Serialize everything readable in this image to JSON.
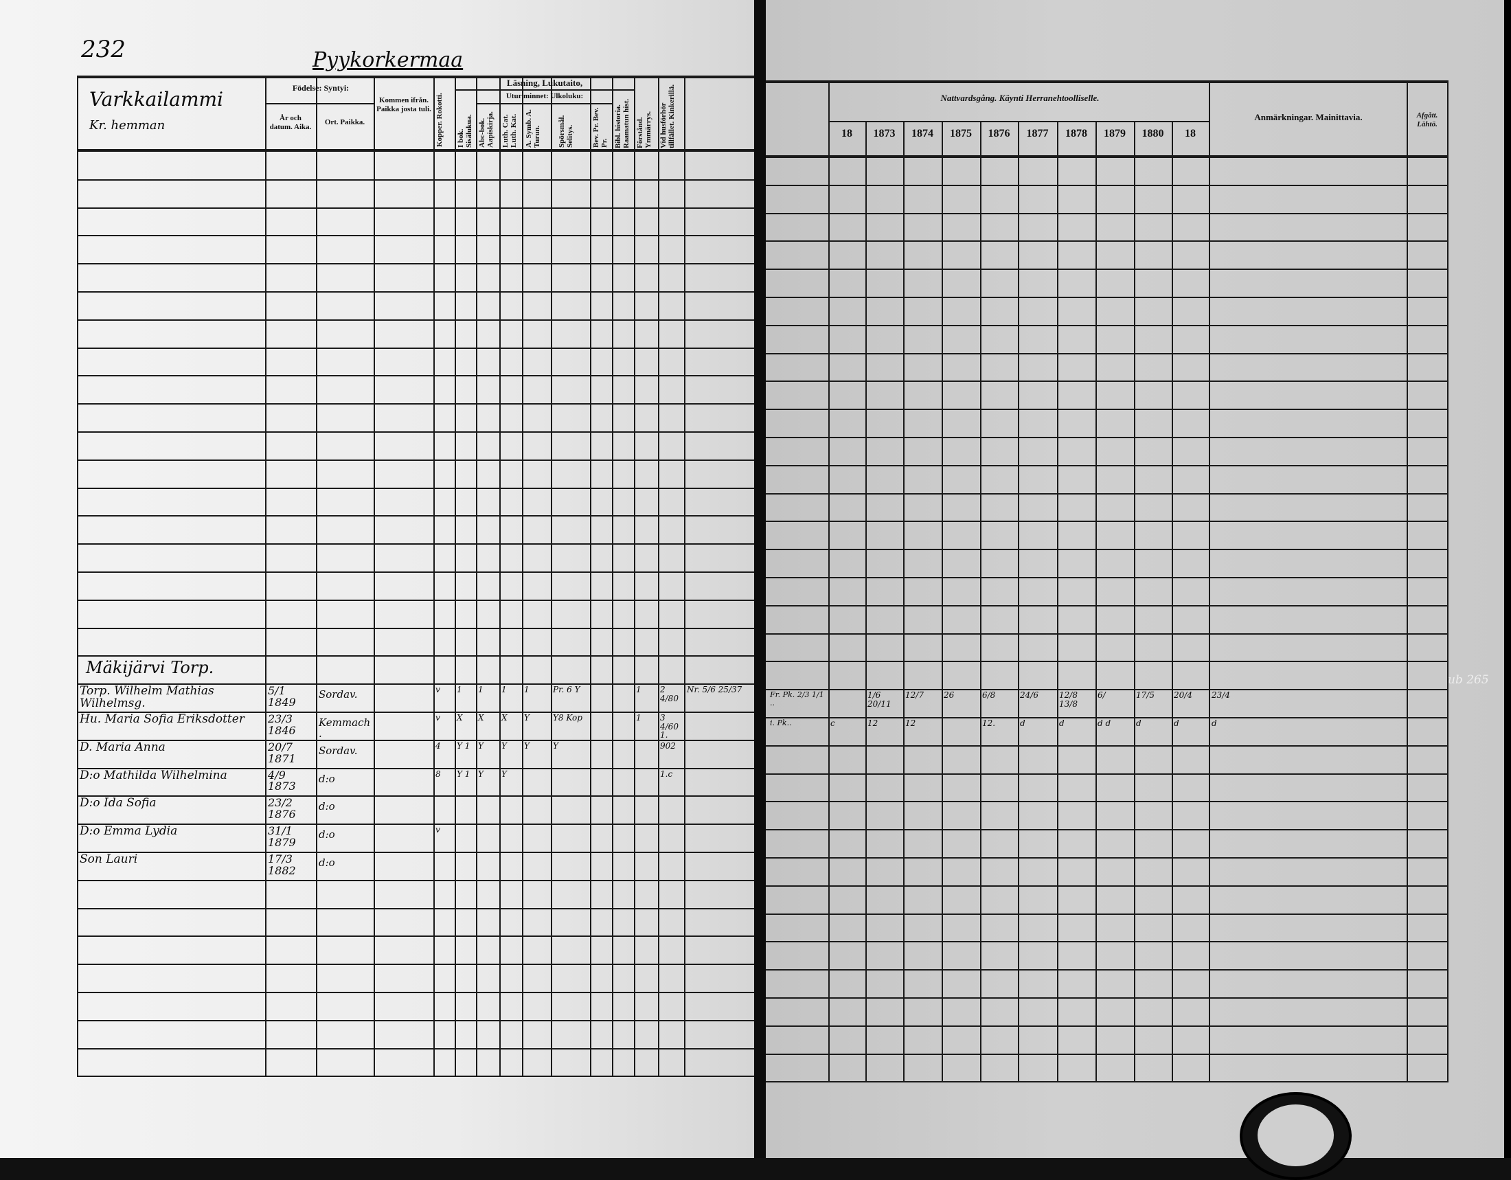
{
  "document": {
    "page_number": "232",
    "farm_title": "Pyykorkermaa",
    "village": "Varkkailammi",
    "village_sub": "Kr. hemman",
    "margin_note": "ub 265"
  },
  "left_headers": {
    "birth": "Födelse: Syntyi:",
    "date": "År och datum. Aika.",
    "place": "Ort. Paikka.",
    "came_from": "Kommen ifrån. Paikka josta tuli.",
    "vaccinated": "Kopper. Rokotti.",
    "reading": "Läsning, Lukutaito,",
    "in_book": "I bok. Sisälukua.",
    "memory": "Utur minnet: Ulkoluku:",
    "abc": "Abc-bok. Aapiskirja.",
    "catechism": "Luth. Cat. Luth. Kat.",
    "symbol": "A. Symb. A. Turun.",
    "questions": "Spörsmål. Selitys.",
    "proofs": "Bev. Pr. Bev. Pr.",
    "bible_history": "Bibl. historia. Raamatun hist.",
    "understanding": "Förstånd. Ymmärrys.",
    "examination": "Vid husförhör tillfället. Kinkerillä."
  },
  "right_headers": {
    "communion": "Nattvardsgång. Käynti Herranehtoolliselle.",
    "years": [
      "18",
      "1873",
      "1874",
      "1875",
      "1876",
      "1877",
      "1878",
      "1879",
      "1880",
      "18"
    ],
    "remarks": "Anmärkningar. Mainittavia.",
    "departed": "Afgått. Lähtö."
  },
  "household_heading": "Mäkijärvi Torp.",
  "entries": [
    {
      "name": "Torp. Wilhelm Mathias Wilhelmsg.",
      "date": "5/1 1849",
      "place": "Sordav.",
      "marks": [
        "v",
        "1",
        "1",
        "1",
        "1",
        "Pr. 6 Y",
        "",
        "",
        "1",
        "2 4/80"
      ],
      "note": "Nr. 5/6 25/37",
      "right_note": "Fr. Pk. 2/3 1/1 ..",
      "communion": [
        "",
        "1/6 20/11",
        "12/7",
        "26",
        "6/8",
        "24/6",
        "12/8 13/8",
        "6/",
        "17/5",
        "20/4"
      ],
      "remark": "23/4"
    },
    {
      "name": "Hu. Maria Sofia Eriksdotter",
      "date": "23/3 1846",
      "place": "Kemmach.",
      "marks": [
        "v",
        "X",
        "X",
        "X",
        "Y",
        "Y8 Kop",
        "",
        "",
        "1",
        "3 4/60 1."
      ],
      "note": "",
      "right_note": "i. Pk..",
      "communion": [
        "c",
        "12",
        "12",
        "",
        "12.",
        "d",
        "d",
        "d d",
        "d",
        "d"
      ],
      "remark": "d"
    },
    {
      "name": "D. Maria Anna",
      "date": "20/7 1871",
      "place": "Sordav.",
      "marks": [
        "4",
        "Y 1",
        "Y",
        "Y",
        "Y",
        "Y",
        "",
        "",
        "",
        "902"
      ],
      "note": "",
      "right_note": "",
      "communion": [],
      "remark": ""
    },
    {
      "name": "D:o Mathilda Wilhelmina",
      "date": "4/9 1873",
      "place": "d:o",
      "marks": [
        "8",
        "Y 1",
        "Y",
        "Y",
        "",
        "",
        "",
        "",
        "",
        "1.c"
      ],
      "note": "",
      "right_note": "",
      "communion": [],
      "remark": ""
    },
    {
      "name": "D:o Ida Sofia",
      "date": "23/2 1876",
      "place": "d:o",
      "marks": [],
      "note": "",
      "right_note": "",
      "communion": [],
      "remark": ""
    },
    {
      "name": "D:o Emma Lydia",
      "date": "31/1 1879",
      "place": "d:o",
      "marks": [
        "v"
      ],
      "note": "",
      "right_note": "",
      "communion": [],
      "remark": ""
    },
    {
      "name": "Son Lauri",
      "date": "17/3 1882",
      "place": "d:o",
      "marks": [],
      "note": "",
      "right_note": "",
      "communion": [],
      "remark": ""
    }
  ]
}
